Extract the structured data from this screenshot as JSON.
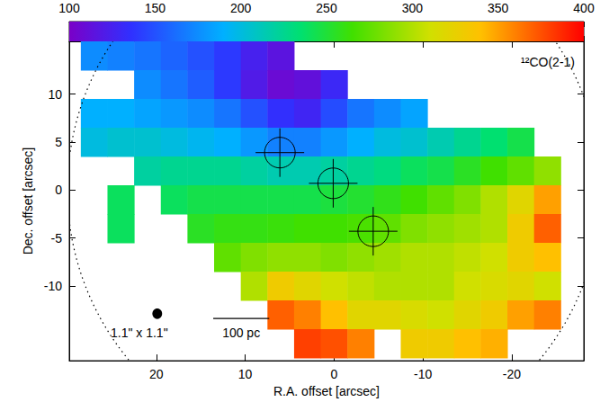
{
  "chart_data": {
    "type": "heatmap",
    "label": "¹²CO(2-1)",
    "x_label": "R.A. offset [arcsec]",
    "y_label": "Dec. offset [arcsec]",
    "xlim": [
      29.8,
      -28.1
    ],
    "ylim": [
      -17.8,
      15.5
    ],
    "xticks": [
      20,
      10,
      0,
      -10,
      -20
    ],
    "yticks": [
      -10,
      -5,
      0,
      5,
      10
    ],
    "grid": false,
    "colorbar": {
      "range": [
        100,
        400
      ],
      "ticks": [
        100,
        150,
        200,
        250,
        300,
        350,
        400
      ]
    },
    "cells": {
      "x": [
        27,
        24,
        21,
        18,
        15,
        12,
        9,
        6,
        3,
        0,
        -3,
        -6,
        -9,
        -12,
        -15,
        -18,
        -21,
        -24
      ],
      "y": [
        14,
        11,
        8,
        5,
        2,
        -1,
        -4,
        -7,
        -10,
        -13,
        -16
      ],
      "values": [
        [
          175,
          170,
          165,
          158,
          150,
          140,
          125,
          115,
          null,
          null,
          null,
          null,
          null,
          null,
          null,
          null,
          null,
          null
        ],
        [
          null,
          null,
          175,
          165,
          155,
          140,
          120,
          108,
          112,
          130,
          null,
          null,
          null,
          null,
          null,
          null,
          null,
          null
        ],
        [
          190,
          190,
          185,
          180,
          175,
          165,
          150,
          135,
          128,
          148,
          165,
          175,
          185,
          null,
          null,
          null,
          null,
          null
        ],
        [
          200,
          205,
          205,
          200,
          195,
          190,
          180,
          170,
          170,
          180,
          190,
          200,
          205,
          215,
          225,
          235,
          245,
          null
        ],
        [
          null,
          null,
          220,
          225,
          225,
          225,
          220,
          215,
          215,
          220,
          225,
          230,
          240,
          245,
          255,
          265,
          275,
          290
        ],
        [
          null,
          240,
          null,
          240,
          245,
          245,
          245,
          245,
          245,
          248,
          252,
          258,
          265,
          275,
          285,
          300,
          320,
          350
        ],
        [
          null,
          240,
          null,
          null,
          255,
          260,
          260,
          262,
          265,
          265,
          268,
          275,
          285,
          290,
          295,
          300,
          330,
          370
        ],
        [
          null,
          null,
          null,
          null,
          null,
          275,
          285,
          290,
          290,
          285,
          290,
          295,
          300,
          300,
          305,
          310,
          330,
          340
        ],
        [
          null,
          null,
          null,
          null,
          null,
          null,
          300,
          330,
          320,
          310,
          305,
          300,
          300,
          300,
          310,
          315,
          320,
          310
        ],
        [
          null,
          null,
          null,
          null,
          null,
          null,
          null,
          370,
          360,
          340,
          320,
          320,
          315,
          310,
          320,
          330,
          350,
          360
        ],
        [
          null,
          null,
          null,
          null,
          null,
          null,
          null,
          null,
          380,
          375,
          360,
          null,
          330,
          330,
          340,
          345,
          null,
          null
        ]
      ]
    },
    "markers": [
      {
        "x": 6.1,
        "y": 3.9
      },
      {
        "x": 0.1,
        "y": 0.7
      },
      {
        "x": -4.4,
        "y": -4.3
      }
    ],
    "field_of_view": {
      "x": 0,
      "y": 0,
      "radius": 30
    },
    "beam": {
      "x": 19.9,
      "y": -12.9,
      "major": 1.1,
      "minor": 1.1,
      "label": "1.1\" x 1.1\""
    },
    "scale_bar": {
      "x": 13.6,
      "y": -13.4,
      "length": 6.3,
      "label": "100 pc"
    }
  }
}
